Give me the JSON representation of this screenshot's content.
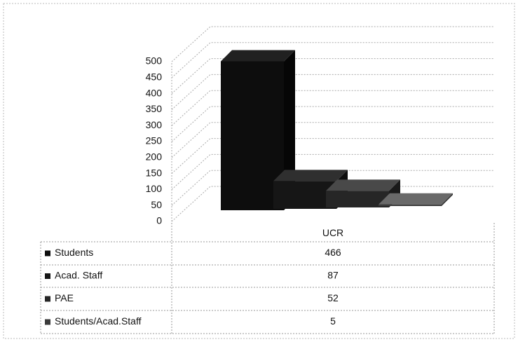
{
  "chart_data": {
    "type": "bar3d",
    "categories": [
      "UCR"
    ],
    "series": [
      {
        "name": "Students",
        "color": "#0d0d0d",
        "values": [
          466
        ]
      },
      {
        "name": "Acad. Staff",
        "color": "#161616",
        "values": [
          87
        ]
      },
      {
        "name": "PAE",
        "color": "#262626",
        "values": [
          52
        ]
      },
      {
        "name": "Students/Acad.Staff",
        "color": "#3a3a3a",
        "values": [
          5
        ]
      }
    ],
    "ylim": [
      0,
      500
    ],
    "yticks": [
      0,
      50,
      100,
      150,
      200,
      250,
      300,
      350,
      400,
      450,
      500
    ],
    "grid": true
  }
}
